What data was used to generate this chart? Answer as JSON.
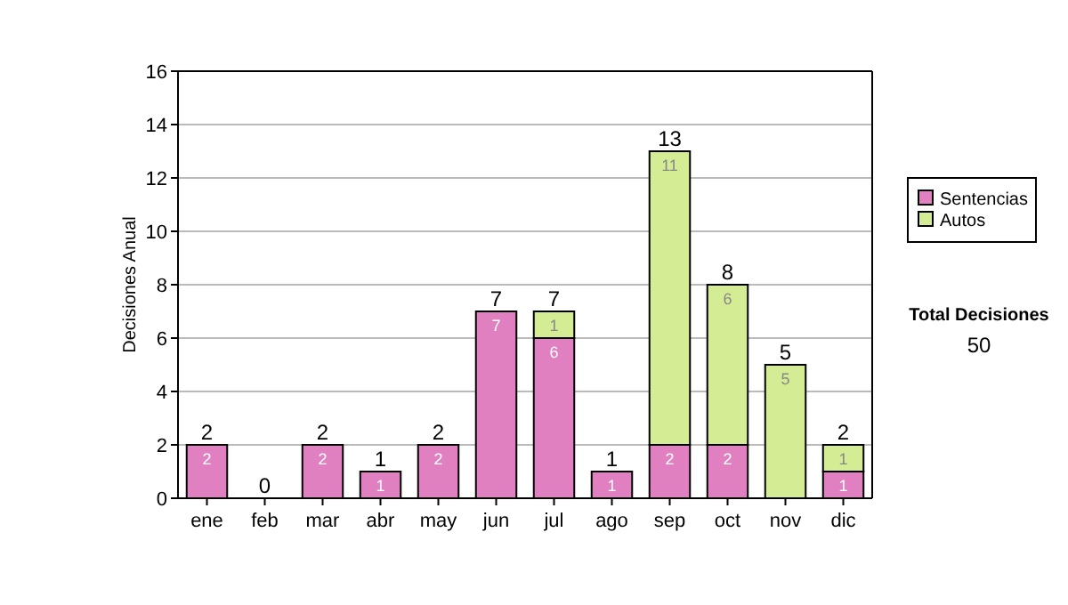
{
  "chart_data": {
    "type": "bar",
    "stacked": true,
    "ylabel": "Decisiones Anual",
    "categories": [
      "ene",
      "feb",
      "mar",
      "abr",
      "may",
      "jun",
      "jul",
      "ago",
      "sep",
      "oct",
      "nov",
      "dic"
    ],
    "series": [
      {
        "name": "Sentencias",
        "color": "#e080c0",
        "values": [
          2,
          0,
          2,
          1,
          2,
          7,
          6,
          1,
          2,
          2,
          0,
          1
        ],
        "value_labels": [
          "2",
          null,
          "2",
          "1",
          "2",
          "7",
          "6",
          "1",
          "2",
          "2",
          null,
          "1"
        ]
      },
      {
        "name": "Autos",
        "color": "#d4ec94",
        "values": [
          0,
          0,
          0,
          0,
          0,
          0,
          1,
          0,
          11,
          6,
          5,
          1
        ],
        "value_labels": [
          null,
          null,
          null,
          null,
          null,
          null,
          "1",
          null,
          "11",
          "6",
          "5",
          "1"
        ]
      }
    ],
    "totals": [
      "2",
      "0",
      "2",
      "1",
      "2",
      "7",
      "7",
      "1",
      "13",
      "8",
      "5",
      "2"
    ],
    "ylim": [
      0,
      16
    ],
    "yticks": [
      0,
      2,
      4,
      6,
      8,
      10,
      12,
      14,
      16
    ],
    "grid": "y",
    "legend": "right",
    "annotations": [
      "Total Decisiones",
      "50"
    ]
  }
}
